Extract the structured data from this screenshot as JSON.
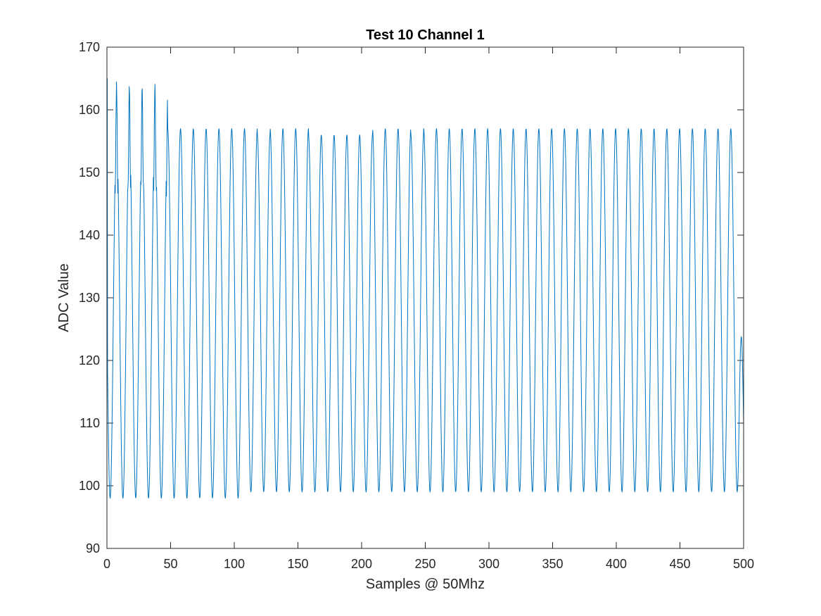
{
  "chart_data": {
    "type": "line",
    "title": "Test 10 Channel 1",
    "xlabel": "Samples @ 50Mhz",
    "ylabel": "ADC Value",
    "xlim": [
      0,
      500
    ],
    "ylim": [
      90,
      170
    ],
    "xticks": [
      0,
      50,
      100,
      150,
      200,
      250,
      300,
      350,
      400,
      450,
      500
    ],
    "yticks": [
      90,
      100,
      110,
      120,
      130,
      140,
      150,
      160,
      170
    ],
    "grid": false,
    "box": true,
    "series": [
      {
        "color": "#0072BD",
        "period_samples": 10.05,
        "peaks": [
          157,
          157,
          157,
          157,
          157,
          157,
          157,
          157,
          157,
          157,
          157,
          157,
          156,
          157,
          157,
          157,
          156,
          156,
          156,
          156,
          156,
          157,
          157,
          157,
          156,
          157,
          157,
          157,
          157,
          157,
          157,
          157,
          157,
          157,
          157,
          157,
          157,
          157,
          157,
          157,
          157,
          157,
          157,
          157,
          157,
          157,
          157,
          157,
          157,
          157
        ],
        "troughs": [
          98,
          98,
          98,
          98,
          98,
          98,
          98,
          98,
          98,
          98,
          98,
          99,
          99,
          99,
          99,
          99,
          99,
          99,
          99,
          99,
          99,
          99,
          99,
          99,
          99,
          99,
          99,
          99,
          99,
          99,
          99,
          99,
          99,
          99,
          99,
          99,
          99,
          99,
          99,
          99,
          99,
          99,
          99,
          99,
          99,
          99,
          99,
          99,
          99,
          99
        ],
        "spike_peak": 165,
        "spike_dip": 146,
        "spike_cycles": 5,
        "start_value": 165,
        "end_value": 110
      }
    ]
  }
}
